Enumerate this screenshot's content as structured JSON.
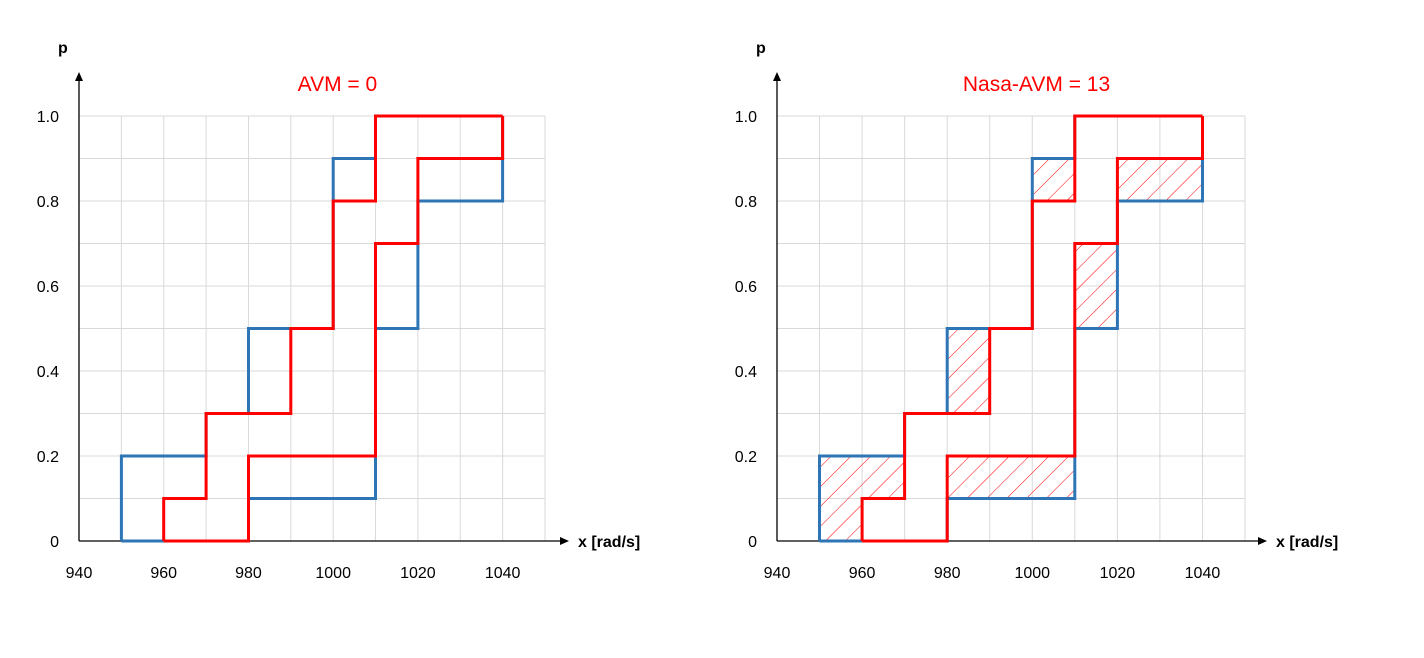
{
  "chart_data": [
    {
      "type": "line",
      "step": true,
      "title": "AVM = 0",
      "xlabel": "x [rad/s]",
      "ylabel": "p",
      "xlim": [
        940,
        1040
      ],
      "ylim": [
        0,
        1.0
      ],
      "xticks": [
        "940",
        "960",
        "980",
        "1000",
        "1020",
        "1040"
      ],
      "yticks": [
        "0",
        "0.2",
        "0.4",
        "0.6",
        "0.8",
        "1.0"
      ],
      "grid": true,
      "hatched": false,
      "series": [
        {
          "color": "#2e75b6",
          "role": "left-bound",
          "x": [
            950,
            950,
            970,
            970,
            980,
            980,
            1000,
            1000,
            1010,
            1010,
            1040,
            1040
          ],
          "y": [
            0,
            0.2,
            0.2,
            0.3,
            0.3,
            0.5,
            0.5,
            0.9,
            0.9,
            1.0,
            1.0,
            1.0
          ]
        },
        {
          "color": "#2e75b6",
          "role": "right-bound",
          "x": [
            950,
            980,
            980,
            1010,
            1010,
            1020,
            1020,
            1040,
            1040
          ],
          "y": [
            0,
            0,
            0.1,
            0.1,
            0.5,
            0.5,
            0.8,
            0.8,
            1.0
          ]
        },
        {
          "color": "#ff0000",
          "role": "left-bound",
          "x": [
            960,
            960,
            970,
            970,
            990,
            990,
            1000,
            1000,
            1010,
            1010,
            1040,
            1040
          ],
          "y": [
            0,
            0.1,
            0.1,
            0.3,
            0.3,
            0.5,
            0.5,
            0.8,
            0.8,
            1.0,
            1.0,
            1.0
          ]
        },
        {
          "color": "#ff0000",
          "role": "right-bound",
          "x": [
            960,
            980,
            980,
            1010,
            1010,
            1020,
            1020,
            1040,
            1040
          ],
          "y": [
            0,
            0,
            0.2,
            0.2,
            0.7,
            0.7,
            0.9,
            0.9,
            1.0
          ]
        }
      ]
    },
    {
      "type": "line",
      "step": true,
      "title": "Nasa-AVM = 13",
      "xlabel": "x [rad/s]",
      "ylabel": "p",
      "xlim": [
        940,
        1040
      ],
      "ylim": [
        0,
        1.0
      ],
      "xticks": [
        "940",
        "960",
        "980",
        "1000",
        "1020",
        "1040"
      ],
      "yticks": [
        "0",
        "0.2",
        "0.4",
        "0.6",
        "0.8",
        "1.0"
      ],
      "grid": true,
      "hatched": true,
      "hatch_regions": [
        {
          "x": [
            950,
            960
          ],
          "y": [
            0,
            0.2
          ]
        },
        {
          "x": [
            960,
            970
          ],
          "y": [
            0.1,
            0.2
          ]
        },
        {
          "x": [
            980,
            990
          ],
          "y": [
            0.3,
            0.5
          ]
        },
        {
          "x": [
            980,
            1010
          ],
          "y": [
            0.1,
            0.2
          ]
        },
        {
          "x": [
            1000,
            1010
          ],
          "y": [
            0.8,
            0.9
          ]
        },
        {
          "x": [
            1010,
            1020
          ],
          "y": [
            0.5,
            0.7
          ]
        },
        {
          "x": [
            1020,
            1040
          ],
          "y": [
            0.8,
            0.9
          ]
        }
      ],
      "series": [
        {
          "color": "#2e75b6",
          "role": "left-bound",
          "x": [
            950,
            950,
            970,
            970,
            980,
            980,
            1000,
            1000,
            1010,
            1010,
            1040,
            1040
          ],
          "y": [
            0,
            0.2,
            0.2,
            0.3,
            0.3,
            0.5,
            0.5,
            0.9,
            0.9,
            1.0,
            1.0,
            1.0
          ]
        },
        {
          "color": "#2e75b6",
          "role": "right-bound",
          "x": [
            950,
            980,
            980,
            1010,
            1010,
            1020,
            1020,
            1040,
            1040
          ],
          "y": [
            0,
            0,
            0.1,
            0.1,
            0.5,
            0.5,
            0.8,
            0.8,
            1.0
          ]
        },
        {
          "color": "#ff0000",
          "role": "left-bound",
          "x": [
            960,
            960,
            970,
            970,
            990,
            990,
            1000,
            1000,
            1010,
            1010,
            1040,
            1040
          ],
          "y": [
            0,
            0.1,
            0.1,
            0.3,
            0.3,
            0.5,
            0.5,
            0.8,
            0.8,
            1.0,
            1.0,
            1.0
          ]
        },
        {
          "color": "#ff0000",
          "role": "right-bound",
          "x": [
            960,
            980,
            980,
            1010,
            1010,
            1020,
            1020,
            1040,
            1040
          ],
          "y": [
            0,
            0,
            0.2,
            0.2,
            0.7,
            0.7,
            0.9,
            0.9,
            1.0
          ]
        }
      ]
    }
  ]
}
